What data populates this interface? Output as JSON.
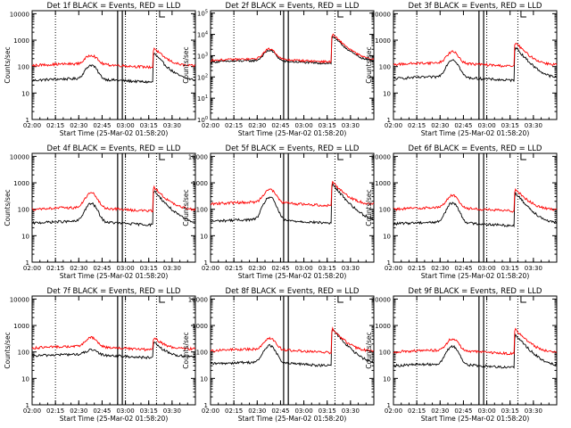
{
  "page": {
    "background": "#ffffff"
  },
  "chart_data": [
    {
      "type": "line",
      "title": "Det 1f BLACK = Events, RED = LLD",
      "xlabel": "Start Time (25-Mar-02 01:58:20)",
      "ylabel": "Counts/sec",
      "y_scale": "log",
      "ylim": [
        1,
        13000
      ],
      "y_ticks": [
        1,
        10,
        100,
        1000,
        10000
      ],
      "y_tick_labels": [
        "1",
        "10",
        "100",
        "1000",
        "10000"
      ],
      "xlim": [
        0,
        105
      ],
      "x_ticks": [
        0,
        15,
        30,
        45,
        60,
        75,
        90
      ],
      "x_tick_labels": [
        "02:00",
        "02:15",
        "02:30",
        "02:45",
        "03:00",
        "03:15",
        "03:30"
      ],
      "dotted_lines_x": [
        15,
        60,
        80
      ],
      "vertical_lines_x": [
        55,
        58
      ],
      "flag_x": 82,
      "series": [
        {
          "color": "#000000",
          "base": 30,
          "peak1": 110,
          "peak2": 350
        },
        {
          "color": "#ff0000",
          "base": 110,
          "peak1": 260,
          "peak2": 550
        }
      ]
    },
    {
      "type": "line",
      "title": "Det 2f BLACK = Events, RED = LLD",
      "xlabel": "Start Time (25-Mar-02 01:58:20)",
      "ylabel": "Counts/sec",
      "y_scale": "log",
      "ylim": [
        1,
        130000
      ],
      "y_ticks": [
        1,
        10,
        100,
        1000,
        10000,
        100000
      ],
      "y_tick_labels": [
        "10^0",
        "10^1",
        "10^2",
        "10^3",
        "10^4",
        "10^5"
      ],
      "xlim": [
        0,
        105
      ],
      "x_ticks": [
        0,
        15,
        30,
        45,
        60,
        75,
        90
      ],
      "x_tick_labels": [
        "02:00",
        "02:15",
        "02:30",
        "02:45",
        "03:00",
        "03:15",
        "03:30"
      ],
      "dotted_lines_x": [
        15,
        80
      ],
      "vertical_lines_x": [
        47,
        50
      ],
      "flag_x": 82,
      "series": [
        {
          "color": "#000000",
          "base": 500,
          "peak1": 1700,
          "peak2": 9000
        },
        {
          "color": "#ff0000",
          "base": 600,
          "peak1": 2000,
          "peak2": 11000
        }
      ]
    },
    {
      "type": "line",
      "title": "Det 3f BLACK = Events, RED = LLD",
      "xlabel": "Start Time (25-Mar-02 01:58:20)",
      "ylabel": "Counts/sec",
      "y_scale": "log",
      "ylim": [
        1,
        13000
      ],
      "y_ticks": [
        1,
        10,
        100,
        1000,
        10000
      ],
      "y_tick_labels": [
        "1",
        "10",
        "100",
        "1000",
        "10000"
      ],
      "xlim": [
        0,
        105
      ],
      "x_ticks": [
        0,
        15,
        30,
        45,
        60,
        75,
        90
      ],
      "x_tick_labels": [
        "02:00",
        "02:15",
        "02:30",
        "02:45",
        "03:00",
        "03:15",
        "03:30"
      ],
      "dotted_lines_x": [
        15,
        60,
        80
      ],
      "vertical_lines_x": [
        55,
        58
      ],
      "flag_x": 82,
      "series": [
        {
          "color": "#000000",
          "base": 35,
          "peak1": 180,
          "peak2": 600
        },
        {
          "color": "#ff0000",
          "base": 120,
          "peak1": 350,
          "peak2": 900
        }
      ]
    },
    {
      "type": "line",
      "title": "Det 4f BLACK = Events, RED = LLD",
      "xlabel": "Start Time (25-Mar-02 01:58:20)",
      "ylabel": "Counts/sec",
      "y_scale": "log",
      "ylim": [
        1,
        13000
      ],
      "y_ticks": [
        1,
        10,
        100,
        1000,
        10000
      ],
      "y_tick_labels": [
        "1",
        "10",
        "100",
        "1000",
        "10000"
      ],
      "xlim": [
        0,
        105
      ],
      "x_ticks": [
        0,
        15,
        30,
        45,
        60,
        75,
        90
      ],
      "x_tick_labels": [
        "02:00",
        "02:15",
        "02:30",
        "02:45",
        "03:00",
        "03:15",
        "03:30"
      ],
      "dotted_lines_x": [
        15,
        60,
        80
      ],
      "vertical_lines_x": [
        55,
        58
      ],
      "flag_x": 82,
      "series": [
        {
          "color": "#000000",
          "base": 30,
          "peak1": 160,
          "peak2": 550
        },
        {
          "color": "#ff0000",
          "base": 100,
          "peak1": 400,
          "peak2": 750
        }
      ]
    },
    {
      "type": "line",
      "title": "Det 5f BLACK = Events, RED = LLD",
      "xlabel": "Start Time (25-Mar-02 01:58:20)",
      "ylabel": "Counts/sec",
      "y_scale": "log",
      "ylim": [
        1,
        13000
      ],
      "y_ticks": [
        1,
        10,
        100,
        1000,
        10000
      ],
      "y_tick_labels": [
        "1",
        "10",
        "100",
        "1000",
        "10000"
      ],
      "xlim": [
        0,
        105
      ],
      "x_ticks": [
        0,
        15,
        30,
        45,
        60,
        75,
        90
      ],
      "x_tick_labels": [
        "02:00",
        "02:15",
        "02:30",
        "02:45",
        "03:00",
        "03:15",
        "03:30"
      ],
      "dotted_lines_x": [
        15,
        80
      ],
      "vertical_lines_x": [
        47,
        50
      ],
      "flag_x": 82,
      "series": [
        {
          "color": "#000000",
          "base": 35,
          "peak1": 280,
          "peak2": 950
        },
        {
          "color": "#ff0000",
          "base": 160,
          "peak1": 550,
          "peak2": 1200
        }
      ]
    },
    {
      "type": "line",
      "title": "Det 6f BLACK = Events, RED = LLD",
      "xlabel": "Start Time (25-Mar-02 01:58:20)",
      "ylabel": "Counts/sec",
      "y_scale": "log",
      "ylim": [
        1,
        13000
      ],
      "y_ticks": [
        1,
        10,
        100,
        1000,
        10000
      ],
      "y_tick_labels": [
        "1",
        "10",
        "100",
        "1000",
        "10000"
      ],
      "xlim": [
        0,
        105
      ],
      "x_ticks": [
        0,
        15,
        30,
        45,
        60,
        75,
        90
      ],
      "x_tick_labels": [
        "02:00",
        "02:15",
        "02:30",
        "02:45",
        "03:00",
        "03:15",
        "03:30"
      ],
      "dotted_lines_x": [
        15,
        60,
        80
      ],
      "vertical_lines_x": [
        55,
        58
      ],
      "flag_x": 82,
      "series": [
        {
          "color": "#000000",
          "base": 28,
          "peak1": 170,
          "peak2": 450
        },
        {
          "color": "#ff0000",
          "base": 100,
          "peak1": 320,
          "peak2": 650
        }
      ]
    },
    {
      "type": "line",
      "title": "Det 7f BLACK = Events, RED = LLD",
      "xlabel": "Start Time (25-Mar-02 01:58:20)",
      "ylabel": "Counts/sec",
      "y_scale": "log",
      "ylim": [
        1,
        13000
      ],
      "y_ticks": [
        1,
        10,
        100,
        1000,
        10000
      ],
      "y_tick_labels": [
        "1",
        "10",
        "100",
        "1000",
        "10000"
      ],
      "xlim": [
        0,
        105
      ],
      "x_ticks": [
        0,
        15,
        30,
        45,
        60,
        75,
        90
      ],
      "x_tick_labels": [
        "02:00",
        "02:15",
        "02:30",
        "02:45",
        "03:00",
        "03:15",
        "03:30"
      ],
      "dotted_lines_x": [
        15,
        60,
        80
      ],
      "vertical_lines_x": [
        55,
        58
      ],
      "flag_x": 82,
      "series": [
        {
          "color": "#000000",
          "base": 70,
          "peak1": 110,
          "peak2": 250
        },
        {
          "color": "#ff0000",
          "base": 140,
          "peak1": 330,
          "peak2": 380
        }
      ]
    },
    {
      "type": "line",
      "title": "Det 8f BLACK = Events, RED = LLD",
      "xlabel": "Start Time (25-Mar-02 01:58:20)",
      "ylabel": "Counts/sec",
      "y_scale": "log",
      "ylim": [
        1,
        13000
      ],
      "y_ticks": [
        1,
        10,
        100,
        1000,
        10000
      ],
      "y_tick_labels": [
        "1",
        "10",
        "100",
        "1000",
        "10000"
      ],
      "xlim": [
        0,
        105
      ],
      "x_ticks": [
        0,
        15,
        30,
        45,
        60,
        75,
        90
      ],
      "x_tick_labels": [
        "02:00",
        "02:15",
        "02:30",
        "02:45",
        "03:00",
        "03:15",
        "03:30"
      ],
      "dotted_lines_x": [
        15,
        80
      ],
      "vertical_lines_x": [
        47,
        50
      ],
      "flag_x": 82,
      "series": [
        {
          "color": "#000000",
          "base": 35,
          "peak1": 170,
          "peak2": 800
        },
        {
          "color": "#ff0000",
          "base": 110,
          "peak1": 320,
          "peak2": 800
        }
      ]
    },
    {
      "type": "line",
      "title": "Det 9f BLACK = Events, RED = LLD",
      "xlabel": "Start Time (25-Mar-02 01:58:20)",
      "ylabel": "Counts/sec",
      "y_scale": "log",
      "ylim": [
        1,
        13000
      ],
      "y_ticks": [
        1,
        10,
        100,
        1000,
        10000
      ],
      "y_tick_labels": [
        "1",
        "10",
        "100",
        "1000",
        "10000"
      ],
      "xlim": [
        0,
        105
      ],
      "x_ticks": [
        0,
        15,
        30,
        45,
        60,
        75,
        90
      ],
      "x_tick_labels": [
        "02:00",
        "02:15",
        "02:30",
        "02:45",
        "03:00",
        "03:15",
        "03:30"
      ],
      "dotted_lines_x": [
        15,
        60,
        80
      ],
      "vertical_lines_x": [
        55,
        58
      ],
      "flag_x": 82,
      "series": [
        {
          "color": "#000000",
          "base": 30,
          "peak1": 160,
          "peak2": 500
        },
        {
          "color": "#ff0000",
          "base": 100,
          "peak1": 300,
          "peak2": 800
        }
      ]
    }
  ]
}
